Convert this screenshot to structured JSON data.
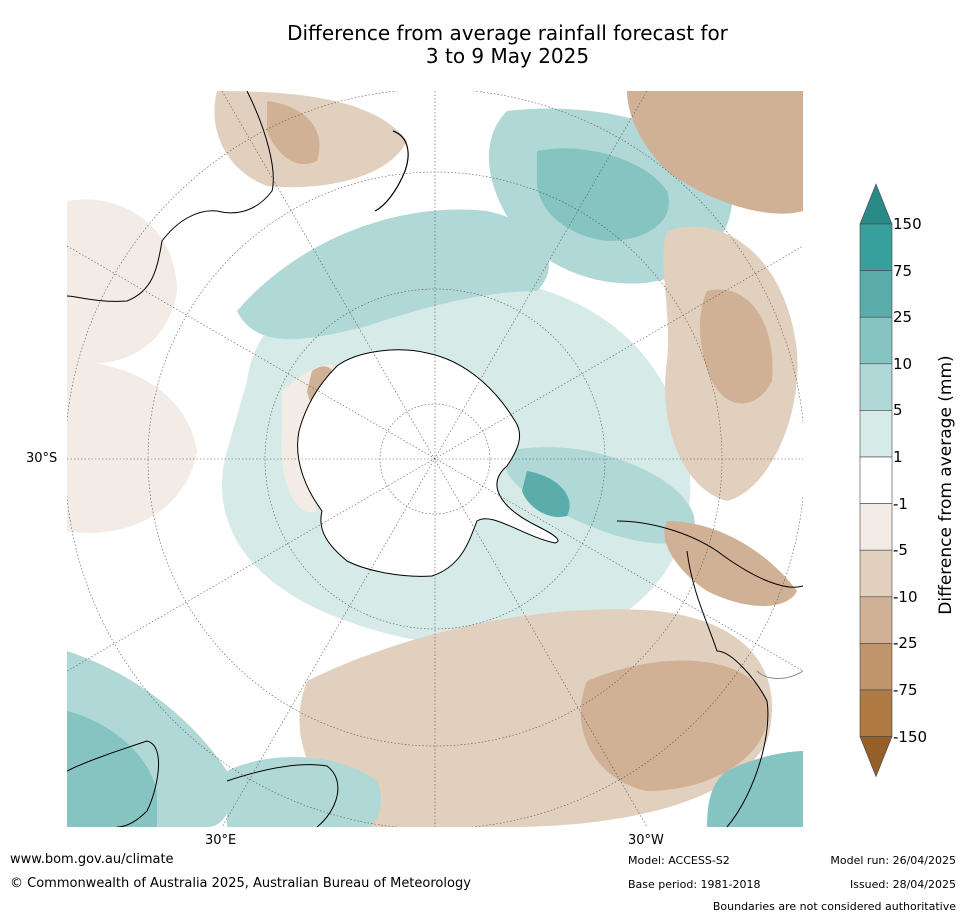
{
  "title_line1": "Difference from average rainfall forecast for",
  "title_line2": "3 to 9 May 2025",
  "map": {
    "latitude_label": "30°S",
    "longitude_label_left": "30°E",
    "longitude_label_right": "30°W",
    "colors": {
      "ocean_white": "#ffffff",
      "coast": "#000000",
      "grid": "#555555",
      "border": "#888888"
    }
  },
  "legend": {
    "title": "Difference from average (mm)",
    "levels": [
      "150",
      "75",
      "25",
      "10",
      "5",
      "1",
      "-1",
      "-5",
      "-10",
      "-25",
      "-75",
      "-150"
    ],
    "colors": [
      "#2a8a87",
      "#37a09c",
      "#5aadab",
      "#86c4c2",
      "#b0d8d6",
      "#d6eae8",
      "#ffffff",
      "#f3ebe5",
      "#e2d0bf",
      "#d0b195",
      "#c0956c",
      "#b07a45",
      "#965f28"
    ]
  },
  "footer": {
    "website": "www.bom.gov.au/climate",
    "copyright": "© Commonwealth of Australia 2025, Australian Bureau of Meteorology",
    "model": "Model: ACCESS-S2",
    "base_period": "Base period: 1981-2018",
    "model_run": "Model run: 26/04/2025",
    "issued": "Issued: 28/04/2025",
    "disclaimer": "Boundaries are not considered authoritative"
  }
}
